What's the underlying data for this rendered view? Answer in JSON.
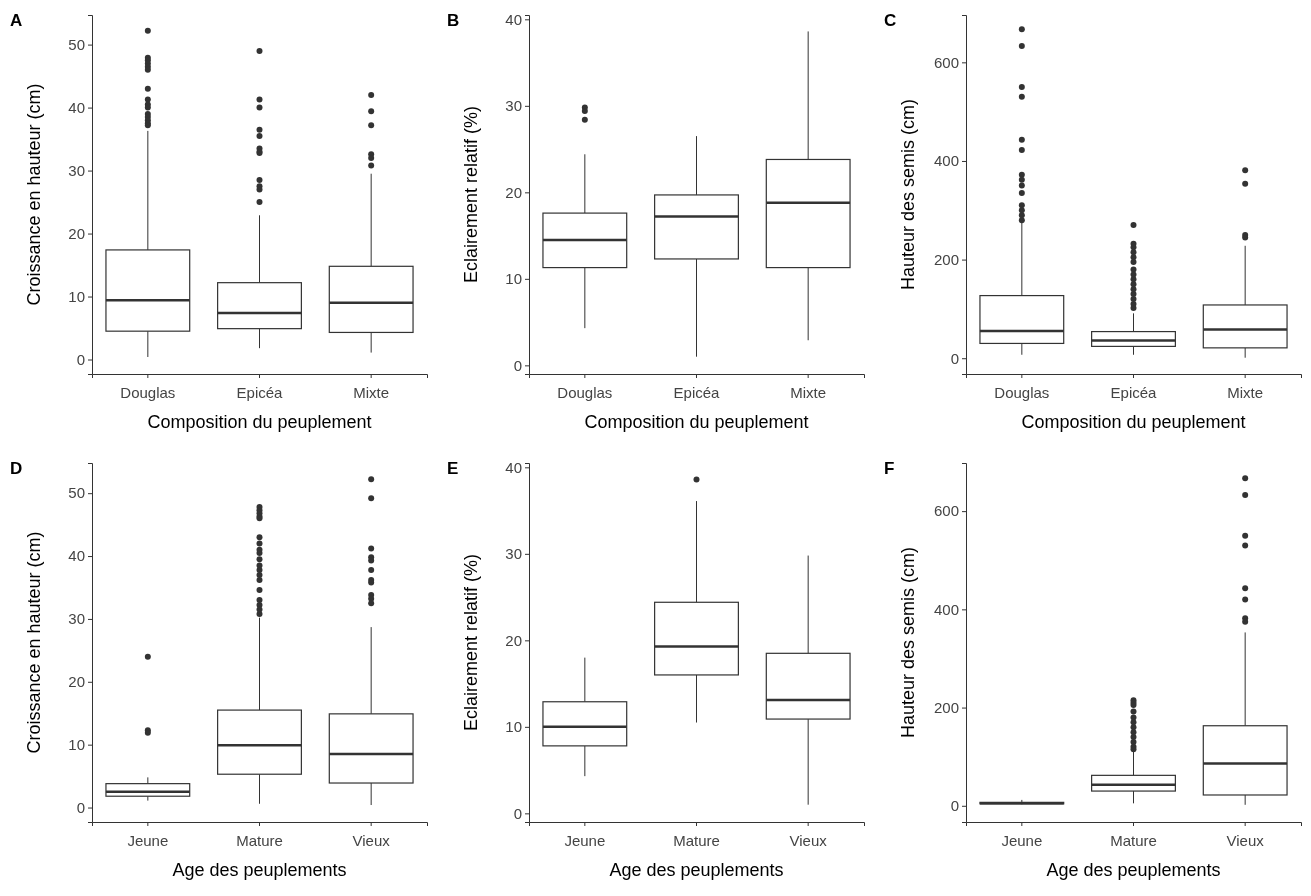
{
  "chart_data": [
    {
      "type": "box",
      "title": "A",
      "categories": [
        "Douglas",
        "Epicéa",
        "Mixte"
      ],
      "xlabel": "Composition du peuplement",
      "ylabel": "Croissance en hauteur (cm)",
      "ylim": [
        -2.3,
        54.7
      ],
      "yticks": [
        0,
        10,
        20,
        30,
        40,
        50
      ],
      "boxes": [
        {
          "low": 0.4,
          "q1": 4.5,
          "median": 9.4,
          "q3": 17.4,
          "high": 36.3,
          "outliers": [
            52.2,
            47.9,
            47.5,
            47,
            46.5,
            46,
            43,
            41.3,
            40.5,
            40,
            39,
            38.5,
            38,
            37.5,
            37.2
          ]
        },
        {
          "low": 1.8,
          "q1": 4.9,
          "median": 7.4,
          "q3": 12.2,
          "high": 22.9,
          "outliers": [
            49,
            41.3,
            40,
            36.5,
            35.5,
            33.5,
            33,
            32.8,
            28.5,
            27.5,
            27,
            25
          ]
        },
        {
          "low": 1.1,
          "q1": 4.3,
          "median": 9.0,
          "q3": 14.8,
          "high": 29.5,
          "outliers": [
            42,
            39.4,
            37.2,
            32.6,
            32,
            30.8
          ]
        }
      ]
    },
    {
      "type": "box",
      "title": "B",
      "categories": [
        "Douglas",
        "Epicéa",
        "Mixte"
      ],
      "xlabel": "Composition du peuplement",
      "ylabel": "Eclairement relatif (%)",
      "ylim": [
        -1,
        40.5
      ],
      "yticks": [
        0,
        10,
        20,
        30,
        40
      ],
      "boxes": [
        {
          "low": 4.3,
          "q1": 11.3,
          "median": 14.5,
          "q3": 17.6,
          "high": 24.4,
          "outliers": [
            29.8,
            29.4,
            28.4
          ]
        },
        {
          "low": 1.0,
          "q1": 12.3,
          "median": 17.2,
          "q3": 19.7,
          "high": 26.5
        },
        {
          "low": 2.9,
          "q1": 11.3,
          "median": 18.8,
          "q3": 23.8,
          "high": 38.6
        }
      ]
    },
    {
      "type": "box",
      "title": "C",
      "categories": [
        "Douglas",
        "Epicéa",
        "Mixte"
      ],
      "xlabel": "Composition du peuplement",
      "ylabel": "Hauteur des semis (cm)",
      "ylim": [
        -32,
        696
      ],
      "yticks": [
        0,
        200,
        400,
        600
      ],
      "boxes": [
        {
          "low": 7,
          "q1": 30,
          "median": 55,
          "q3": 127,
          "high": 284,
          "outliers": [
            667,
            633,
            550,
            530,
            443,
            422,
            372,
            362,
            350,
            335,
            310,
            300,
            290,
            280
          ]
        },
        {
          "low": 7,
          "q1": 24,
          "median": 36,
          "q3": 54,
          "high": 91,
          "outliers": [
            270,
            232,
            225,
            215,
            205,
            195,
            180,
            170,
            160,
            150,
            140,
            130,
            120,
            110,
            102
          ]
        },
        {
          "low": 1,
          "q1": 21,
          "median": 58,
          "q3": 108,
          "high": 228,
          "outliers": [
            381,
            354,
            250,
            245
          ]
        }
      ]
    },
    {
      "type": "box",
      "title": "D",
      "categories": [
        "Jeune",
        "Mature",
        "Vieux"
      ],
      "xlabel": "Age des peuplements",
      "ylabel": "Croissance en hauteur (cm)",
      "ylim": [
        -2.3,
        54.8
      ],
      "yticks": [
        0,
        10,
        20,
        30,
        40,
        50
      ],
      "boxes": [
        {
          "low": 1.1,
          "q1": 1.8,
          "median": 2.5,
          "q3": 3.8,
          "high": 4.8,
          "outliers": [
            24,
            12.3,
            11.9
          ]
        },
        {
          "low": 0.6,
          "q1": 5.3,
          "median": 9.9,
          "q3": 15.5,
          "high": 30.2,
          "outliers": [
            47.8,
            47.3,
            46.8,
            46.3,
            46,
            43,
            42,
            41,
            40.5,
            39.5,
            38.5,
            37.8,
            37,
            36.2,
            34.6,
            33,
            32.2,
            31.5,
            30.8
          ]
        },
        {
          "low": 0.4,
          "q1": 3.9,
          "median": 8.5,
          "q3": 14.9,
          "high": 28.7,
          "outliers": [
            52.2,
            49.2,
            41.2,
            39.8,
            39.3,
            37.8,
            36.2,
            35.8,
            33.8,
            33.2,
            32.5
          ]
        }
      ]
    },
    {
      "type": "box",
      "title": "E",
      "categories": [
        "Jeune",
        "Mature",
        "Vieux"
      ],
      "xlabel": "Age des peuplements",
      "ylabel": "Eclairement relatif (%)",
      "ylim": [
        -1,
        40.5
      ],
      "yticks": [
        0,
        10,
        20,
        30,
        40
      ],
      "boxes": [
        {
          "low": 4.3,
          "q1": 7.8,
          "median": 10.0,
          "q3": 12.9,
          "high": 18.0
        },
        {
          "low": 10.5,
          "q1": 16.0,
          "median": 19.3,
          "q3": 24.4,
          "high": 36.1,
          "outliers": [
            38.6
          ]
        },
        {
          "low": 1.0,
          "q1": 10.9,
          "median": 13.1,
          "q3": 18.5,
          "high": 29.8
        }
      ]
    },
    {
      "type": "box",
      "title": "F",
      "categories": [
        "Jeune",
        "Mature",
        "Vieux"
      ],
      "xlabel": "Age des peuplements",
      "ylabel": "Hauteur des semis (cm)",
      "ylim": [
        -33,
        698
      ],
      "yticks": [
        0,
        200,
        400,
        600
      ],
      "boxes": [
        {
          "low": 3,
          "q1": 4,
          "median": 5,
          "q3": 7,
          "high": 12
        },
        {
          "low": 5,
          "q1": 30,
          "median": 43,
          "q3": 62,
          "high": 112,
          "outliers": [
            215,
            210,
            205,
            192,
            180,
            170,
            160,
            150,
            140,
            130,
            120,
            115
          ]
        },
        {
          "low": 2,
          "q1": 22,
          "median": 86,
          "q3": 163,
          "high": 353,
          "outliers": [
            667,
            633,
            550,
            530,
            443,
            420,
            382,
            375
          ]
        }
      ]
    }
  ]
}
